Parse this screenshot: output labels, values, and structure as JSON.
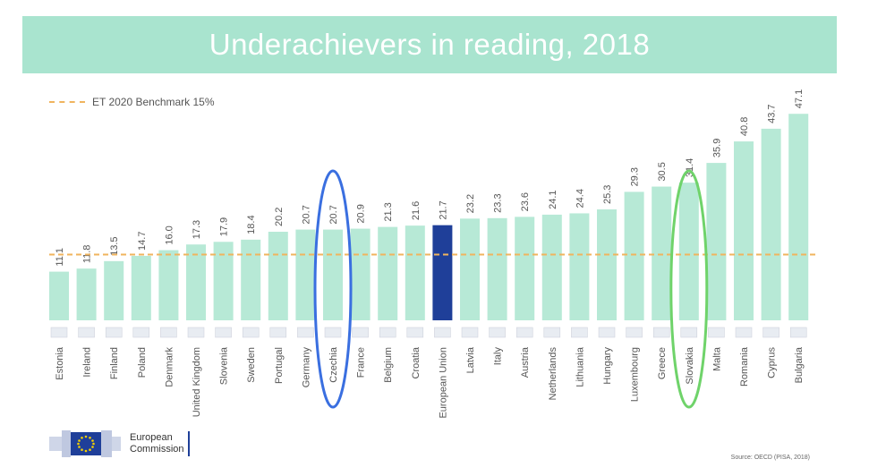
{
  "chart_data": {
    "type": "bar",
    "title": "Underachievers in reading, 2018",
    "categories": [
      "Estonia",
      "Ireland",
      "Finland",
      "Poland",
      "Denmark",
      "United Kingdom",
      "Slovenia",
      "Sweden",
      "Portugal",
      "Germany",
      "Czechia",
      "France",
      "Belgium",
      "Croatia",
      "European Union",
      "Latvia",
      "Italy",
      "Austria",
      "Netherlands",
      "Lithuania",
      "Hungary",
      "Luxembourg",
      "Greece",
      "Slovakia",
      "Malta",
      "Romania",
      "Cyprus",
      "Bulgaria"
    ],
    "values": [
      11.1,
      11.8,
      13.5,
      14.7,
      16.0,
      17.3,
      17.9,
      18.4,
      20.2,
      20.7,
      20.7,
      20.9,
      21.3,
      21.6,
      21.7,
      23.2,
      23.3,
      23.6,
      24.1,
      24.4,
      25.3,
      29.3,
      30.5,
      31.4,
      35.9,
      40.8,
      43.7,
      47.1
    ],
    "value_labels": [
      "11.1",
      "11.8",
      "13.5",
      "14.7",
      "16.0",
      "17.3",
      "17.9",
      "18.4",
      "20.2",
      "20.7",
      "20.7",
      "20.9",
      "21.3",
      "21.6",
      "21.7",
      "23.2",
      "23.3",
      "23.6",
      "24.1",
      "24.4",
      "25.3",
      "29.3",
      "30.5",
      "31.4",
      "35.9",
      "40.8",
      "43.7",
      "47.1"
    ],
    "benchmark": {
      "label": "ET 2020 Benchmark 15%",
      "value": 15
    },
    "highlighted": {
      "category": "European Union",
      "color": "#1f3f99"
    },
    "circled": [
      {
        "category": "Czechia",
        "color": "#3a6fe0"
      },
      {
        "category": "Slovakia",
        "color": "#6fd36a"
      }
    ],
    "ylim": [
      0,
      47.1
    ],
    "xlabel": "",
    "ylabel": "",
    "grid": false,
    "legend_placement": "top-left",
    "colors": {
      "bar": "#b7e9d6",
      "bar_eu": "#1f3f99",
      "banner": "#a9e4cf",
      "benchmark": "#f0b45e",
      "label": "#555555"
    }
  },
  "footer": {
    "logo_line1": "European",
    "logo_line2": "Commission",
    "source": "Source: OECD (PISA, 2018)"
  }
}
